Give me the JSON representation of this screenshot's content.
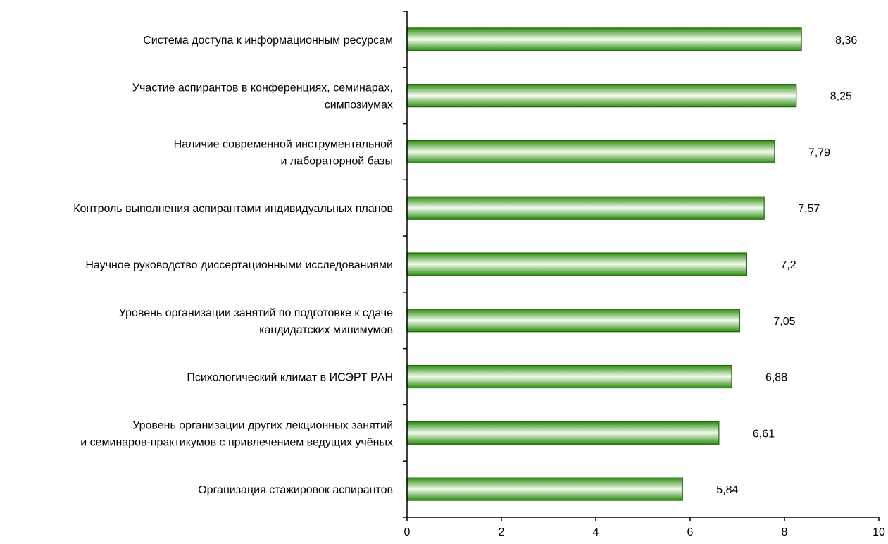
{
  "chart_data": {
    "type": "bar",
    "orientation": "horizontal",
    "categories": [
      [
        "Система доступа к информационным ресурсам"
      ],
      [
        "Участие аспирантов в конференциях, семинарах,",
        "симпозиумах"
      ],
      [
        "Наличие современной инструментальной",
        "и лабораторной базы"
      ],
      [
        "Контроль выполнения аспирантами индивидуальных планов"
      ],
      [
        "Научное руководство диссертационными исследованиями"
      ],
      [
        "Уровень организации занятий по подготовке к сдаче",
        "кандидатских минимумов"
      ],
      [
        "Психологический климат в ИСЭРТ РАН"
      ],
      [
        "Уровень организации других лекционных занятий",
        "и семинаров-практикумов с привлечением ведущих учёных"
      ],
      [
        "Организация стажировок аспирантов"
      ]
    ],
    "values": [
      8.36,
      8.25,
      7.79,
      7.57,
      7.2,
      7.05,
      6.88,
      6.61,
      5.84
    ],
    "value_labels": [
      "8,36",
      "8,25",
      "7,79",
      "7,57",
      "7,2",
      "7,05",
      "6,88",
      "6,61",
      "5,84"
    ],
    "xlim": [
      0,
      10
    ],
    "xticks": [
      0,
      2,
      4,
      6,
      8,
      10
    ],
    "xtick_labels": [
      "0",
      "2",
      "4",
      "6",
      "8",
      "10"
    ],
    "grid": false,
    "colors": {
      "bar_dark": "#2e8b12",
      "bar_mid": "#8fd46e",
      "bar_light": "#f2fcee",
      "bar_stroke": "#1f6b0a",
      "axis": "#000000"
    }
  }
}
